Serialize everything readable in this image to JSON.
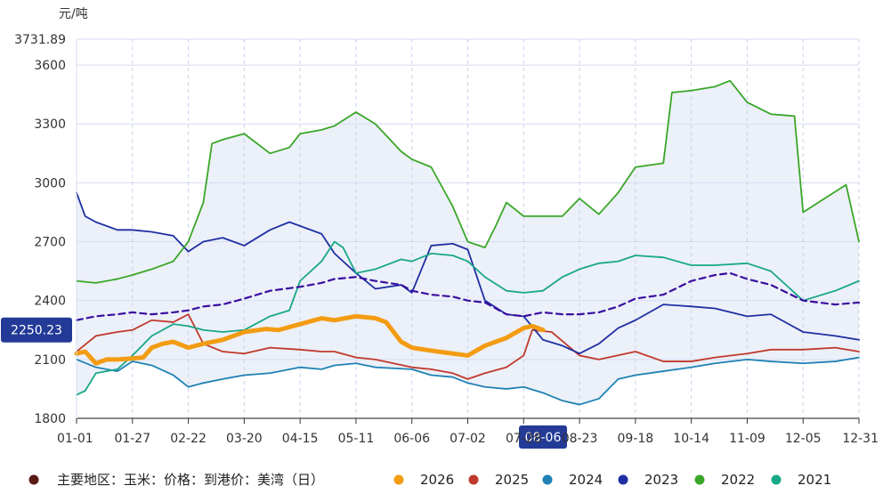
{
  "chart_data": {
    "type": "line",
    "title": "",
    "unit_label": "元/吨",
    "ylim": [
      1800,
      3731.89
    ],
    "y_max_label": "3731.89",
    "y_ticks": [
      1800,
      2100,
      2400,
      2700,
      3000,
      3300,
      3600
    ],
    "x_range": [
      "01-01",
      "12-31"
    ],
    "x_ticks": [
      "01-01",
      "01-27",
      "02-22",
      "03-20",
      "04-15",
      "05-11",
      "06-06",
      "07-02",
      "07-28",
      "08-23",
      "09-18",
      "10-14",
      "11-09",
      "12-05",
      "12-31"
    ],
    "crosshair": {
      "y_value": "2250.23",
      "x_value": "08-06"
    },
    "grid": true,
    "legend_position": "bottom",
    "legend": {
      "indicator": "主要地区：玉米：价格：到港价：美湾（日）",
      "indicator_color": "#5a1a14"
    },
    "series": [
      {
        "name": "2026",
        "color": "#f39c12",
        "x": [
          "01-01",
          "01-05",
          "01-10",
          "01-15",
          "01-20",
          "01-27",
          "02-01",
          "02-05",
          "02-10",
          "02-15",
          "02-22",
          "03-01",
          "03-10",
          "03-20",
          "03-30",
          "04-05",
          "04-15",
          "04-25",
          "05-01",
          "05-11",
          "05-20",
          "05-25",
          "06-01",
          "06-06",
          "06-15",
          "06-25",
          "07-02",
          "07-10",
          "07-20",
          "07-28",
          "08-01",
          "08-06"
        ],
        "values": [
          2130,
          2140,
          2080,
          2100,
          2100,
          2105,
          2110,
          2160,
          2180,
          2190,
          2160,
          2180,
          2200,
          2240,
          2255,
          2250,
          2280,
          2310,
          2300,
          2320,
          2310,
          2290,
          2190,
          2160,
          2145,
          2130,
          2120,
          2170,
          2210,
          2260,
          2270,
          2250
        ]
      },
      {
        "name": "2025",
        "color": "#c0392b",
        "x": [
          "01-01",
          "01-10",
          "01-20",
          "01-27",
          "02-05",
          "02-15",
          "02-22",
          "03-01",
          "03-10",
          "03-20",
          "04-01",
          "04-15",
          "04-25",
          "05-01",
          "05-11",
          "05-20",
          "06-06",
          "06-15",
          "06-25",
          "07-02",
          "07-10",
          "07-20",
          "07-28",
          "08-01",
          "08-10",
          "08-23",
          "09-01",
          "09-18",
          "10-01",
          "10-14",
          "10-25",
          "11-09",
          "11-20",
          "12-05",
          "12-20",
          "12-31"
        ],
        "values": [
          2140,
          2220,
          2240,
          2250,
          2300,
          2290,
          2330,
          2180,
          2140,
          2130,
          2160,
          2150,
          2140,
          2140,
          2110,
          2100,
          2060,
          2050,
          2030,
          2000,
          2030,
          2060,
          2120,
          2250,
          2240,
          2120,
          2100,
          2140,
          2090,
          2090,
          2110,
          2130,
          2150,
          2150,
          2160,
          2140
        ]
      },
      {
        "name": "2024",
        "color": "#1f82b4",
        "x": [
          "01-01",
          "01-10",
          "01-20",
          "01-27",
          "02-05",
          "02-15",
          "02-22",
          "03-01",
          "03-10",
          "03-20",
          "04-01",
          "04-15",
          "04-25",
          "05-01",
          "05-11",
          "05-20",
          "06-06",
          "06-15",
          "06-25",
          "07-02",
          "07-10",
          "07-20",
          "07-28",
          "08-06",
          "08-15",
          "08-23",
          "09-01",
          "09-10",
          "09-18",
          "10-01",
          "10-14",
          "10-25",
          "11-09",
          "11-20",
          "12-05",
          "12-20",
          "12-31"
        ],
        "values": [
          2100,
          2060,
          2040,
          2090,
          2070,
          2020,
          1960,
          1980,
          2000,
          2020,
          2030,
          2060,
          2050,
          2070,
          2080,
          2060,
          2050,
          2020,
          2010,
          1980,
          1960,
          1950,
          1960,
          1930,
          1890,
          1870,
          1900,
          2000,
          2020,
          2040,
          2060,
          2080,
          2100,
          2090,
          2080,
          2090,
          2110
        ]
      },
      {
        "name": "2023",
        "color": "#1f2fa3",
        "x": [
          "01-01",
          "01-05",
          "01-10",
          "01-20",
          "01-27",
          "02-05",
          "02-15",
          "02-22",
          "03-01",
          "03-10",
          "03-20",
          "04-01",
          "04-10",
          "04-15",
          "04-25",
          "05-01",
          "05-11",
          "05-20",
          "06-01",
          "06-06",
          "06-15",
          "06-25",
          "07-02",
          "07-10",
          "07-20",
          "07-28",
          "08-06",
          "08-15",
          "08-23",
          "09-01",
          "09-10",
          "09-18",
          "10-01",
          "10-14",
          "10-25",
          "11-09",
          "11-20",
          "12-05",
          "12-20",
          "12-31"
        ],
        "values": [
          2950,
          2830,
          2800,
          2760,
          2760,
          2750,
          2730,
          2650,
          2700,
          2720,
          2680,
          2760,
          2800,
          2780,
          2740,
          2640,
          2540,
          2460,
          2480,
          2440,
          2680,
          2690,
          2660,
          2400,
          2330,
          2320,
          2200,
          2170,
          2130,
          2180,
          2260,
          2300,
          2380,
          2370,
          2360,
          2320,
          2330,
          2240,
          2220,
          2200
        ]
      },
      {
        "name": "2022",
        "color": "#3aa629",
        "x": [
          "01-01",
          "01-10",
          "01-20",
          "01-27",
          "02-05",
          "02-15",
          "02-22",
          "03-01",
          "03-05",
          "03-10",
          "03-20",
          "04-01",
          "04-10",
          "04-15",
          "04-25",
          "05-01",
          "05-11",
          "05-20",
          "06-01",
          "06-06",
          "06-15",
          "06-25",
          "07-02",
          "07-10",
          "07-15",
          "07-20",
          "07-28",
          "08-06",
          "08-15",
          "08-23",
          "09-01",
          "09-10",
          "09-18",
          "10-01",
          "10-05",
          "10-14",
          "10-25",
          "11-01",
          "11-09",
          "11-20",
          "12-01",
          "12-05",
          "12-15",
          "12-25",
          "12-31"
        ],
        "values": [
          2500,
          2490,
          2510,
          2530,
          2560,
          2600,
          2700,
          2900,
          3200,
          3220,
          3250,
          3150,
          3180,
          3250,
          3270,
          3290,
          3360,
          3300,
          3160,
          3120,
          3080,
          2880,
          2700,
          2670,
          2780,
          2900,
          2830,
          2830,
          2830,
          2920,
          2840,
          2950,
          3080,
          3100,
          3460,
          3470,
          3490,
          3520,
          3410,
          3350,
          3340,
          2850,
          2920,
          2990,
          2700
        ]
      },
      {
        "name": "2021",
        "color": "#18a888",
        "x": [
          "01-01",
          "01-05",
          "01-10",
          "01-20",
          "01-27",
          "02-05",
          "02-15",
          "02-22",
          "03-01",
          "03-10",
          "03-20",
          "04-01",
          "04-10",
          "04-15",
          "04-25",
          "05-01",
          "05-05",
          "05-11",
          "05-20",
          "06-01",
          "06-06",
          "06-15",
          "06-25",
          "07-02",
          "07-10",
          "07-20",
          "07-28",
          "08-06",
          "08-15",
          "08-23",
          "09-01",
          "09-10",
          "09-18",
          "10-01",
          "10-14",
          "10-25",
          "11-09",
          "11-20",
          "12-05",
          "12-20",
          "12-31"
        ],
        "values": [
          1920,
          1940,
          2030,
          2050,
          2120,
          2220,
          2280,
          2270,
          2250,
          2240,
          2250,
          2320,
          2350,
          2500,
          2600,
          2700,
          2670,
          2540,
          2560,
          2610,
          2600,
          2640,
          2630,
          2600,
          2520,
          2450,
          2440,
          2450,
          2520,
          2560,
          2590,
          2600,
          2630,
          2620,
          2580,
          2580,
          2590,
          2550,
          2400,
          2450,
          2500
        ]
      },
      {
        "name": "",
        "color": "#3a0fa0",
        "dashed": true,
        "x": [
          "01-01",
          "01-10",
          "01-20",
          "01-27",
          "02-05",
          "02-15",
          "02-22",
          "03-01",
          "03-10",
          "03-20",
          "04-01",
          "04-15",
          "04-25",
          "05-01",
          "05-11",
          "05-20",
          "06-01",
          "06-06",
          "06-15",
          "06-25",
          "07-02",
          "07-10",
          "07-20",
          "07-28",
          "08-06",
          "08-15",
          "08-23",
          "09-01",
          "09-10",
          "09-18",
          "10-01",
          "10-14",
          "10-25",
          "11-01",
          "11-09",
          "11-20",
          "12-05",
          "12-20",
          "12-31"
        ],
        "values": [
          2300,
          2320,
          2330,
          2340,
          2330,
          2340,
          2350,
          2370,
          2380,
          2410,
          2450,
          2470,
          2490,
          2510,
          2520,
          2500,
          2480,
          2450,
          2430,
          2420,
          2400,
          2390,
          2330,
          2320,
          2340,
          2330,
          2330,
          2340,
          2370,
          2410,
          2430,
          2500,
          2530,
          2540,
          2510,
          2480,
          2400,
          2380,
          2390
        ]
      }
    ]
  }
}
